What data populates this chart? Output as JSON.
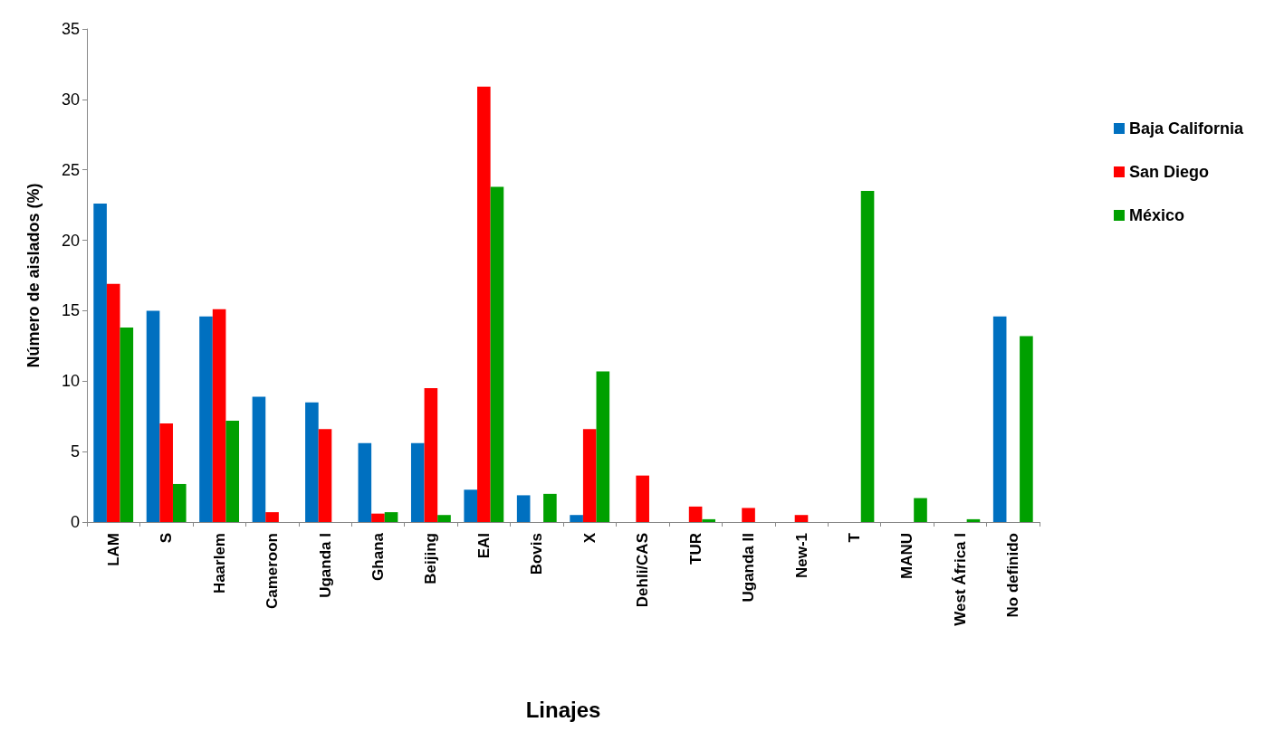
{
  "chart_data": {
    "type": "bar",
    "xlabel": "Linajes",
    "ylabel": "Número de aislados (%)",
    "categories": [
      "LAM",
      "S",
      "Haarlem",
      "Cameroon",
      "Uganda I",
      "Ghana",
      "Beijing",
      "EAI",
      "Bovis",
      "X",
      "Dehli/CAS",
      "TUR",
      "Uganda II",
      "New-1",
      "T",
      "MANU",
      "West África I",
      "No definido"
    ],
    "series": [
      {
        "name": "Baja California",
        "color": "#0070c0",
        "values": [
          22.6,
          15.0,
          14.6,
          8.9,
          8.5,
          5.6,
          5.6,
          2.3,
          1.9,
          0.5,
          0,
          0,
          0,
          0,
          0,
          0,
          0,
          14.6
        ]
      },
      {
        "name": "San Diego",
        "color": "#ff0000",
        "values": [
          16.9,
          7.0,
          15.1,
          0.7,
          6.6,
          0.6,
          9.5,
          30.9,
          0,
          6.6,
          3.3,
          1.1,
          1.0,
          0.5,
          0,
          0,
          0,
          0
        ]
      },
      {
        "name": "México",
        "color": "#00a000",
        "values": [
          13.8,
          2.7,
          7.2,
          0,
          0,
          0.7,
          0.5,
          23.8,
          2.0,
          10.7,
          0,
          0.2,
          0,
          0,
          23.5,
          1.7,
          0.2,
          13.2
        ]
      }
    ],
    "ylim": [
      0,
      35
    ],
    "yticks": [
      0,
      5,
      10,
      15,
      20,
      25,
      30,
      35
    ],
    "grid": false,
    "legend": "right"
  }
}
